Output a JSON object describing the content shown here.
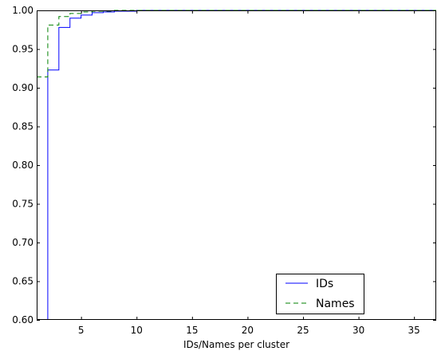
{
  "chart_data": {
    "type": "line",
    "title": "",
    "xlabel": "IDs/Names per cluster",
    "ylabel": "",
    "xlim": [
      1,
      37
    ],
    "ylim": [
      0.6,
      1.0
    ],
    "xticks": [
      5,
      10,
      15,
      20,
      25,
      30,
      35
    ],
    "yticks": [
      0.6,
      0.65,
      0.7,
      0.75,
      0.8,
      0.85,
      0.9,
      0.95,
      1.0
    ],
    "ytick_labels": [
      "0.60",
      "0.65",
      "0.70",
      "0.75",
      "0.80",
      "0.85",
      "0.90",
      "0.95",
      "1.00"
    ],
    "grid": false,
    "legend_position": "lower-right",
    "series": [
      {
        "name": "IDs",
        "color": "#0000ff",
        "line_style": "solid",
        "step": true,
        "x": [
          2,
          2,
          3,
          4,
          5,
          6,
          7,
          8,
          10,
          37
        ],
        "y": [
          0.6,
          0.923,
          0.978,
          0.99,
          0.994,
          0.997,
          0.998,
          0.999,
          1.0,
          1.0
        ]
      },
      {
        "name": "Names",
        "color": "#008000",
        "line_style": "dashed",
        "step": true,
        "x": [
          1,
          2,
          3,
          4,
          5,
          6,
          8,
          37
        ],
        "y": [
          0.914,
          0.981,
          0.992,
          0.996,
          0.998,
          0.999,
          1.0,
          1.0
        ]
      }
    ]
  }
}
